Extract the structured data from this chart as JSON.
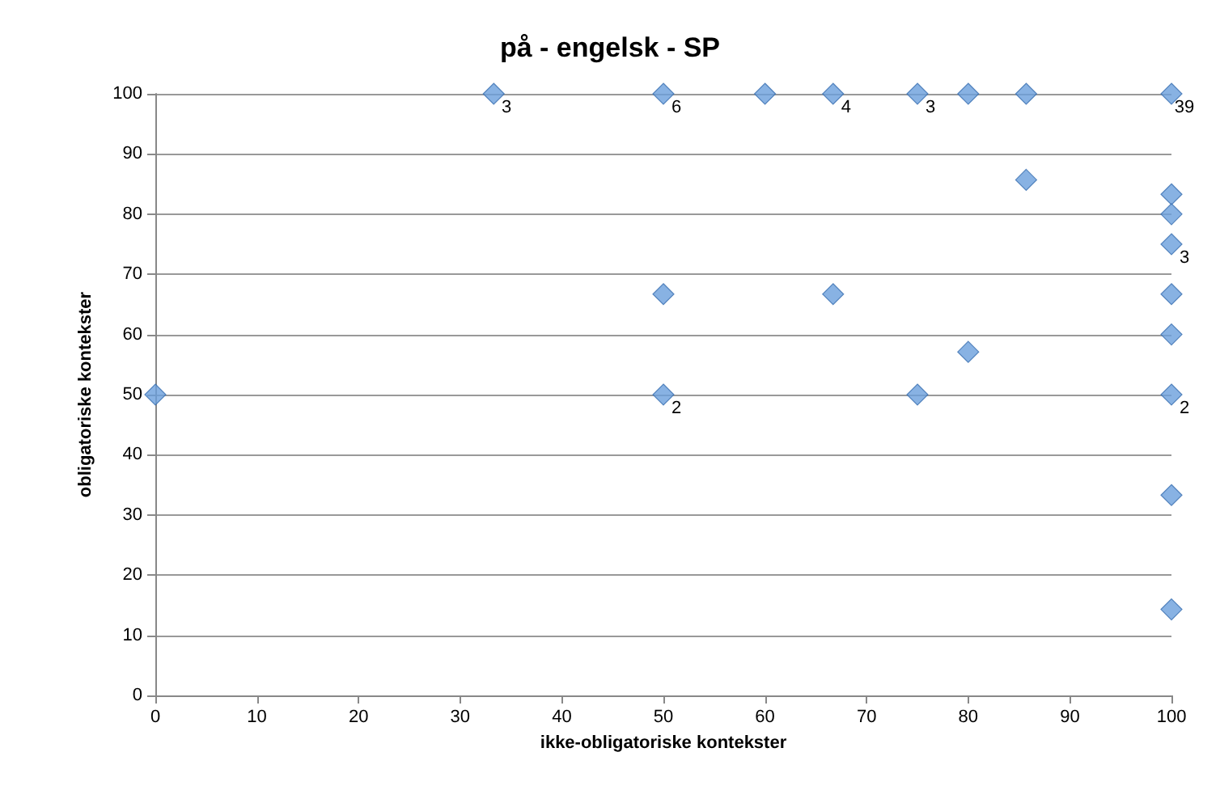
{
  "chart_data": {
    "type": "scatter",
    "title": "på - engelsk - SP",
    "xlabel": "ikke-obligatoriske kontekster",
    "ylabel": "obligatoriske kontekster",
    "x": [
      0,
      33.3,
      50,
      60,
      66.7,
      75,
      80,
      85.7,
      100,
      85.7,
      100,
      100,
      100,
      100,
      100,
      100,
      100,
      100,
      50,
      66.7,
      50,
      75,
      80
    ],
    "values": [
      50,
      100,
      100,
      100,
      100,
      100,
      100,
      100,
      100,
      85.7,
      83.3,
      80,
      75,
      66.7,
      60,
      50,
      33.3,
      14.3,
      66.7,
      66.7,
      50,
      50,
      57.1
    ],
    "annotations": [
      {
        "text": "3",
        "x": 33.3,
        "y": 100
      },
      {
        "text": "6",
        "x": 50,
        "y": 100
      },
      {
        "text": "4",
        "x": 66.7,
        "y": 100
      },
      {
        "text": "3",
        "x": 75,
        "y": 100
      },
      {
        "text": "39",
        "x": 100,
        "y": 100
      },
      {
        "text": "3",
        "x": 100,
        "y": 75
      },
      {
        "text": "2",
        "x": 100,
        "y": 50
      },
      {
        "text": "2",
        "x": 50,
        "y": 50
      }
    ],
    "color": "#6a9fdc",
    "marker": "diamond",
    "xlim": [
      0,
      100
    ],
    "xticks": [
      0,
      10,
      20,
      30,
      40,
      50,
      60,
      70,
      80,
      90,
      100
    ],
    "ylim": [
      0,
      100
    ],
    "yticks": [
      0,
      10,
      20,
      30,
      40,
      50,
      60,
      70,
      80,
      90,
      100
    ],
    "grid": "y"
  }
}
